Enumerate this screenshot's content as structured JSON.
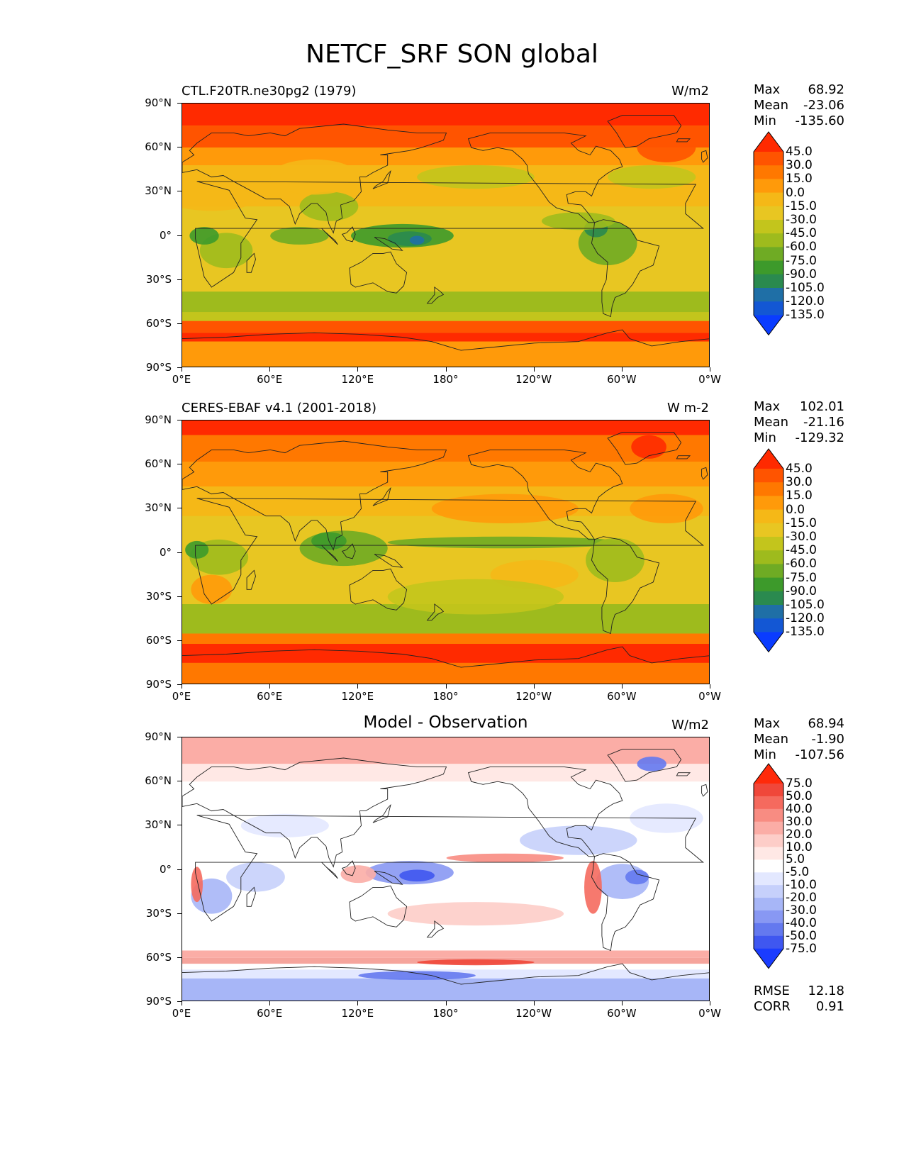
{
  "title": "NETCF_SRF SON global",
  "x_ticks": [
    "0°E",
    "60°E",
    "120°E",
    "180°",
    "120°W",
    "60°W",
    "0°W"
  ],
  "y_ticks": [
    "90°N",
    "60°N",
    "30°N",
    "0°",
    "30°S",
    "60°S",
    "90°S"
  ],
  "panels": [
    {
      "title": "CTL.F20TR.ne30pg2 (1979)",
      "units": "W/m2",
      "stats": {
        "max_label": "Max",
        "max": "68.92",
        "mean_label": "Mean",
        "mean": "-23.06",
        "min_label": "Min",
        "min": "-135.60"
      },
      "colorbar_labels": [
        "45.0",
        "30.0",
        "15.0",
        "0.0",
        "-15.0",
        "-30.0",
        "-45.0",
        "-60.0",
        "-75.0",
        "-90.0",
        "-105.0",
        "-120.0",
        "-135.0"
      ],
      "colorbar_colors": [
        "#ff2a00",
        "#ff5400",
        "#ff7800",
        "#ff9a0a",
        "#f5b817",
        "#e8c622",
        "#c3c51c",
        "#9ebb1d",
        "#6fab24",
        "#3d9a2b",
        "#2a8a4f",
        "#1f6fa6",
        "#1357d4",
        "#0a3cff"
      ],
      "colorbar_top": "#ff2a00",
      "colorbar_bottom": "#0a3cff"
    },
    {
      "title": "CERES-EBAF v4.1 (2001-2018)",
      "units": "W m-2",
      "stats": {
        "max_label": "Max",
        "max": "102.01",
        "mean_label": "Mean",
        "mean": "-21.16",
        "min_label": "Min",
        "min": "-129.32"
      },
      "colorbar_labels": [
        "45.0",
        "30.0",
        "15.0",
        "0.0",
        "-15.0",
        "-30.0",
        "-45.0",
        "-60.0",
        "-75.0",
        "-90.0",
        "-105.0",
        "-120.0",
        "-135.0"
      ],
      "colorbar_colors": [
        "#ff2a00",
        "#ff5400",
        "#ff7800",
        "#ff9a0a",
        "#f5b817",
        "#e8c622",
        "#c3c51c",
        "#9ebb1d",
        "#6fab24",
        "#3d9a2b",
        "#2a8a4f",
        "#1f6fa6",
        "#1357d4",
        "#0a3cff"
      ],
      "colorbar_top": "#ff2a00",
      "colorbar_bottom": "#0a3cff"
    },
    {
      "title": "Model - Observation",
      "units": "W/m2",
      "stats": {
        "max_label": "Max",
        "max": "68.94",
        "mean_label": "Mean",
        "mean": "-1.90",
        "min_label": "Min",
        "min": "-107.56"
      },
      "colorbar_labels": [
        "75.0",
        "50.0",
        "40.0",
        "30.0",
        "20.0",
        "10.0",
        "5.0",
        "-5.0",
        "-10.0",
        "-20.0",
        "-30.0",
        "-40.0",
        "-50.0",
        "-75.0"
      ],
      "colorbar_colors": [
        "#ff2a0a",
        "#f0473a",
        "#f56a5e",
        "#f88c82",
        "#fbada6",
        "#fdcdc8",
        "#ffe8e5",
        "#ffffff",
        "#e3e8ff",
        "#c6d0fb",
        "#a7b6f7",
        "#8898f3",
        "#6479ef",
        "#3f57f0",
        "#1a3cff"
      ],
      "colorbar_top": "#ff2a0a",
      "colorbar_bottom": "#1a3cff",
      "rmse_label": "RMSE",
      "rmse": "12.18",
      "corr_label": "CORR",
      "corr": "0.91"
    }
  ]
}
